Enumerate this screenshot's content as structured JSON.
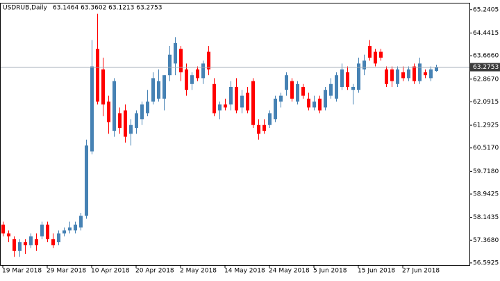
{
  "chart_data": {
    "type": "candlestick",
    "title": "USDRUB,Daily",
    "subtitle": "63.1464 63.3602 63.1213 63.2753",
    "categories": [
      "19 Mar 2018",
      null,
      null,
      null,
      null,
      null,
      null,
      null,
      "29 Mar 2018",
      null,
      null,
      null,
      null,
      null,
      null,
      null,
      "10 Apr 2018",
      null,
      null,
      null,
      null,
      null,
      null,
      null,
      "20 Apr 2018",
      null,
      null,
      null,
      null,
      null,
      null,
      null,
      "2 May 2018",
      null,
      null,
      null,
      null,
      null,
      null,
      null,
      "14 May 2018",
      null,
      null,
      null,
      null,
      null,
      null,
      null,
      "24 May 2018",
      null,
      null,
      null,
      null,
      null,
      null,
      null,
      "5 Jun 2018",
      null,
      null,
      null,
      null,
      null,
      null,
      null,
      "15 Jun 2018",
      null,
      null,
      null,
      null,
      null,
      null,
      null,
      "27 Jun 2018",
      null,
      null,
      null,
      null,
      null,
      null
    ],
    "open": [
      57.9,
      57.6,
      57.4,
      57.0,
      57.3,
      57.2,
      57.4,
      57.5,
      57.9,
      57.4,
      57.3,
      57.6,
      57.7,
      57.7,
      57.8,
      58.2,
      60.4,
      63.9,
      63.2,
      62.1,
      61.1,
      61.7,
      61.8,
      61.0,
      61.2,
      61.5,
      61.7,
      62.1,
      62.2,
      62.2,
      63.0,
      63.4,
      63.9,
      63.2,
      62.7,
      63.2,
      62.9,
      63.8,
      62.7,
      61.8,
      62.0,
      62.0,
      62.6,
      61.9,
      62.4,
      62.8,
      61.3,
      61.3,
      61.3,
      61.5,
      62.1,
      62.5,
      62.8,
      62.1,
      62.6,
      62.2,
      61.9,
      62.2,
      61.9,
      62.3,
      62.2,
      62.6,
      63.1,
      62.5,
      62.5,
      63.2,
      64.0,
      63.8,
      63.8,
      63.2,
      63.2,
      62.7,
      63.1,
      62.9,
      63.3,
      62.8,
      63.1,
      62.9,
      63.1464
    ],
    "high": [
      58.0,
      57.7,
      57.5,
      57.4,
      57.4,
      57.6,
      57.6,
      58.0,
      58.0,
      57.6,
      57.7,
      57.8,
      58.0,
      58.0,
      58.3,
      60.8,
      64.2,
      65.1,
      63.6,
      62.3,
      62.9,
      61.9,
      62.0,
      61.5,
      61.8,
      62.1,
      62.5,
      63.1,
      63.2,
      63.0,
      64.0,
      64.3,
      64.0,
      63.4,
      63.1,
      63.3,
      63.5,
      64.0,
      62.9,
      62.1,
      62.2,
      62.8,
      62.9,
      62.5,
      62.6,
      62.9,
      61.5,
      61.5,
      61.8,
      62.3,
      62.4,
      63.1,
      62.9,
      62.8,
      62.7,
      62.4,
      62.3,
      62.3,
      62.6,
      62.9,
      63.1,
      63.4,
      63.3,
      62.7,
      63.6,
      63.7,
      64.2,
      63.9,
      63.9,
      63.3,
      63.3,
      63.3,
      63.3,
      63.3,
      63.4,
      63.6,
      63.2,
      63.3,
      63.3602
    ],
    "low": [
      57.5,
      57.3,
      56.8,
      56.8,
      56.9,
      57.1,
      57.0,
      57.4,
      57.3,
      57.1,
      57.2,
      57.5,
      57.6,
      57.6,
      57.7,
      58.1,
      60.3,
      62.0,
      61.6,
      61.0,
      60.9,
      61.0,
      60.7,
      60.6,
      61.0,
      61.3,
      61.6,
      62.0,
      62.1,
      61.8,
      62.8,
      63.0,
      62.8,
      62.3,
      62.5,
      62.8,
      62.7,
      63.0,
      61.6,
      61.5,
      61.8,
      61.8,
      61.7,
      61.7,
      61.7,
      61.2,
      60.8,
      61.0,
      61.2,
      61.4,
      61.9,
      62.3,
      62.1,
      62.0,
      62.2,
      61.8,
      61.8,
      61.7,
      61.8,
      62.2,
      62.1,
      62.5,
      62.5,
      62.0,
      62.4,
      63.0,
      63.5,
      63.3,
      63.5,
      62.6,
      62.6,
      62.6,
      62.8,
      62.8,
      62.7,
      62.7,
      62.9,
      62.8,
      63.1213
    ],
    "close": [
      57.6,
      57.5,
      57.0,
      57.3,
      57.2,
      57.5,
      57.2,
      57.9,
      57.4,
      57.2,
      57.6,
      57.7,
      57.8,
      57.9,
      58.2,
      60.6,
      63.3,
      62.1,
      62.0,
      61.4,
      62.8,
      61.2,
      60.9,
      61.3,
      61.7,
      62.0,
      62.1,
      62.9,
      62.8,
      63.0,
      63.7,
      64.1,
      63.1,
      62.5,
      63.0,
      62.9,
      63.4,
      63.2,
      61.7,
      62.0,
      61.9,
      62.6,
      61.8,
      62.3,
      61.8,
      61.3,
      61.0,
      61.1,
      61.7,
      62.2,
      62.3,
      63.0,
      62.2,
      62.7,
      62.3,
      61.9,
      62.1,
      61.8,
      62.5,
      62.7,
      63.0,
      63.2,
      62.6,
      62.6,
      63.4,
      63.5,
      63.6,
      63.4,
      63.6,
      62.7,
      62.8,
      63.2,
      62.9,
      63.2,
      62.8,
      63.4,
      63.0,
      63.2,
      63.2753
    ],
    "up_color": "#4682b4",
    "down_color": "#ff0000",
    "ylim": [
      56.52,
      65.45
    ],
    "yticks": [
      65.2405,
      64.4415,
      {
        "value": 63.666,
        "label": "63.6660"
      },
      {
        "value": 62.867,
        "label": "62.8670"
      },
      62.0915,
      61.2925,
      {
        "value": 60.517,
        "label": "60.5170"
      },
      {
        "value": 59.718,
        "label": "59.7180"
      },
      58.9425,
      58.1435,
      {
        "value": 57.368,
        "label": "57.3680"
      },
      56.5925
    ],
    "last_price": 63.2753,
    "grid": false
  }
}
